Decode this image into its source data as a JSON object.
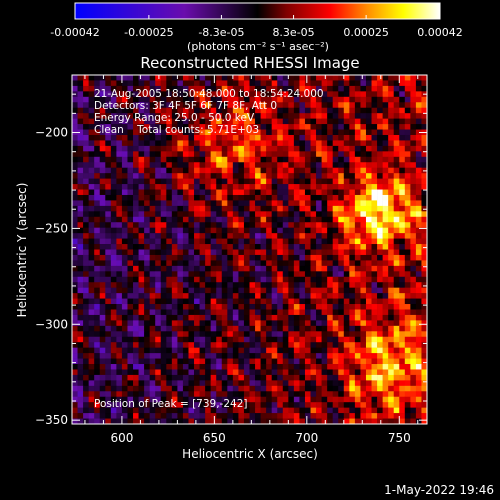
{
  "chart_data": {
    "type": "heatmap",
    "title": "Reconstructed RHESSI Image",
    "xlabel": "Heliocentric X (arcsec)",
    "ylabel": "Heliocentric Y (arcsec)",
    "xlim": [
      573,
      765
    ],
    "ylim": [
      -352,
      -170
    ],
    "xticks": [
      600,
      650,
      700,
      750
    ],
    "yticks": [
      -350,
      -300,
      -250,
      -200
    ],
    "colorbar": {
      "range": [
        -0.00042,
        0.00042
      ],
      "tick_values": [
        -0.00042,
        -0.00025,
        -8.3e-05,
        8.3e-05,
        0.00025,
        0.00042
      ],
      "tick_labels": [
        "-0.00042",
        "-0.00025",
        "-8.3e-05",
        "8.3e-05",
        "0.00025",
        "0.00042"
      ],
      "unit_label": "(photons cm⁻² s⁻¹ asec⁻²)",
      "colors": [
        "#0000ff",
        "#6a0dad",
        "#000000",
        "#800000",
        "#ff0000",
        "#ff8c00",
        "#ffff00",
        "#ffffff"
      ]
    },
    "annotations": [
      "21-Aug-2005 18:50:48.000 to 18:54:24.000",
      "Detectors: 3F 4F 5F 6F 7F 8F, Att 0",
      "Energy Range: 25.0 - 50.0 keV",
      "Clean    Total counts: 5.71E+03"
    ],
    "peak_label": "Position of Peak = [739,-242]",
    "peak": [
      739,
      -242
    ],
    "grid": false
  },
  "footer": {
    "timestamp": "1-May-2022 19:46"
  }
}
